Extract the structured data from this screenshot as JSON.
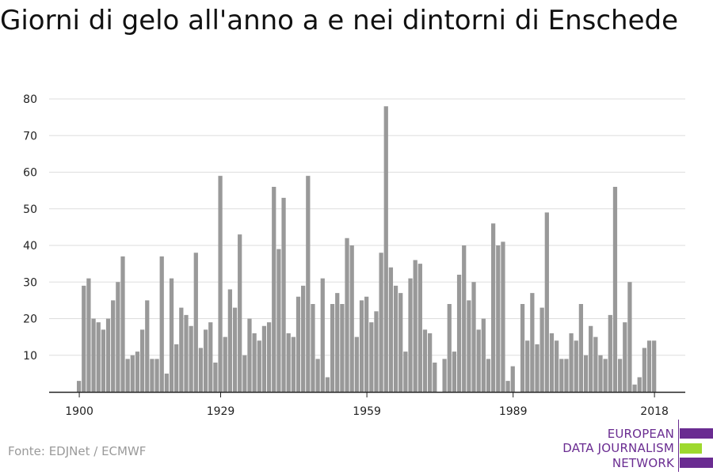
{
  "chart_data": {
    "type": "bar",
    "title": "Giorni di gelo all'anno a e nei dintorni di Enschede",
    "xlabel": "",
    "ylabel": "",
    "bar_color": "#999999",
    "grid": true,
    "ylim": [
      0,
      80
    ],
    "y_ticks": [
      10,
      20,
      30,
      40,
      50,
      60,
      70,
      80
    ],
    "x_range": [
      1900,
      2018
    ],
    "x_ticks": [
      1900,
      1929,
      1959,
      1989,
      2018
    ],
    "x": [
      1900,
      1901,
      1902,
      1903,
      1904,
      1905,
      1906,
      1907,
      1908,
      1909,
      1910,
      1911,
      1912,
      1913,
      1914,
      1915,
      1916,
      1917,
      1918,
      1919,
      1920,
      1921,
      1922,
      1923,
      1924,
      1925,
      1926,
      1927,
      1928,
      1929,
      1930,
      1931,
      1932,
      1933,
      1934,
      1935,
      1936,
      1937,
      1938,
      1939,
      1940,
      1941,
      1942,
      1943,
      1944,
      1945,
      1946,
      1947,
      1948,
      1949,
      1950,
      1951,
      1952,
      1953,
      1954,
      1955,
      1956,
      1957,
      1958,
      1959,
      1960,
      1961,
      1962,
      1963,
      1964,
      1965,
      1966,
      1967,
      1968,
      1969,
      1970,
      1971,
      1972,
      1973,
      1974,
      1975,
      1976,
      1977,
      1978,
      1979,
      1980,
      1981,
      1982,
      1983,
      1984,
      1985,
      1986,
      1987,
      1988,
      1989,
      1990,
      1991,
      1992,
      1993,
      1994,
      1995,
      1996,
      1997,
      1998,
      1999,
      2000,
      2001,
      2002,
      2003,
      2004,
      2005,
      2006,
      2007,
      2008,
      2009,
      2010,
      2011,
      2012,
      2013,
      2014,
      2015,
      2016,
      2017,
      2018
    ],
    "values": [
      3,
      29,
      31,
      20,
      19,
      17,
      20,
      25,
      30,
      37,
      9,
      10,
      11,
      17,
      25,
      9,
      9,
      37,
      5,
      31,
      13,
      23,
      21,
      18,
      38,
      12,
      17,
      19,
      8,
      59,
      15,
      28,
      23,
      43,
      10,
      20,
      16,
      14,
      18,
      19,
      56,
      39,
      53,
      16,
      15,
      26,
      29,
      59,
      24,
      9,
      31,
      4,
      24,
      27,
      24,
      42,
      40,
      15,
      25,
      26,
      19,
      22,
      38,
      78,
      34,
      29,
      27,
      11,
      31,
      36,
      35,
      17,
      16,
      8,
      0,
      9,
      24,
      11,
      32,
      40,
      25,
      30,
      17,
      20,
      9,
      46,
      40,
      41,
      3,
      7,
      0,
      24,
      14,
      27,
      13,
      23,
      49,
      16,
      14,
      9,
      9,
      16,
      14,
      24,
      10,
      18,
      15,
      10,
      9,
      21,
      56,
      9,
      19,
      30,
      2,
      4,
      12,
      14,
      14
    ]
  },
  "source": "Fonte: EDJNet / ECMWF",
  "logo": {
    "lines": [
      "EUROPEAN",
      "DATA JOURNALISM",
      "NETWORK"
    ],
    "purple": "#6a2c91",
    "green": "#9ed92e"
  }
}
